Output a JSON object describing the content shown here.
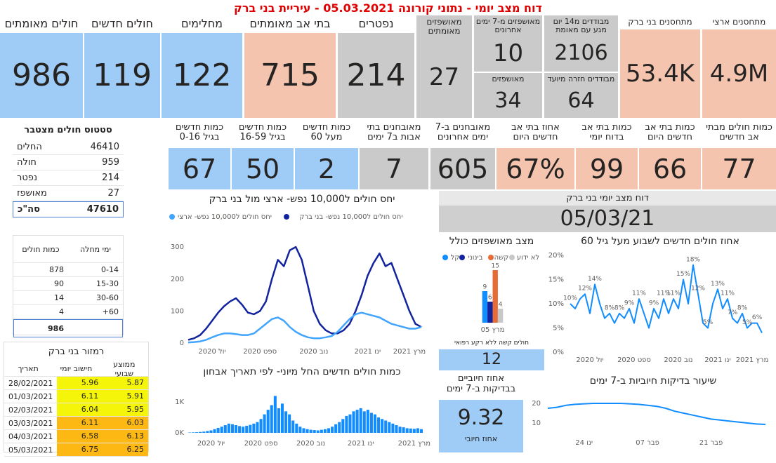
{
  "header": {
    "title": "דוח מצב יומי - נתוני קורונה 05.03.2021 - עיריית בני ברק"
  },
  "kpis_top": [
    {
      "label": "חולים מאומתים",
      "value": 986
    },
    {
      "label": "חולים חדשים",
      "value": 119
    },
    {
      "label": "מחלימים",
      "value": 122
    },
    {
      "label": "בתי אב מאומתים",
      "value": 715
    },
    {
      "label": "נפטרים",
      "value": 214
    },
    {
      "label": "מאושפזים מאומתים",
      "value": 27
    },
    {
      "label": "מאושפזים מ-7 ימים אחרונים",
      "value": 10
    },
    {
      "label": "מאושפזים",
      "value": 34
    },
    {
      "label": "מבודדים מ14 יום מגע עם מאומת",
      "value": 2106
    },
    {
      "label": "מבודדים חזרה מיועד",
      "value": 64
    },
    {
      "label": "מתחסנים בני ברק",
      "value": "53.4K"
    },
    {
      "label": "מתחסנים ארצי",
      "value": "4.9M"
    }
  ],
  "kpis_row2": [
    {
      "label": "כמות חדשים בגיל 0-16",
      "value": 67
    },
    {
      "label": "כמות חדשים בגיל 16-59",
      "value": 50
    },
    {
      "label": "כמות חדשים מעל 60",
      "value": 2
    },
    {
      "label": "מאובחנים בתי אבות ב7 ימים",
      "value": 7
    },
    {
      "label": "מאובחנים ב-7 ימים אחרונים",
      "value": 605
    },
    {
      "label": "אחוז בתי אב חדשים היום",
      "value": "67%"
    },
    {
      "label": "כמות בתי אב בדוח יומי",
      "value": 99
    },
    {
      "label": "כמות בתי אב חדשים היום",
      "value": 66
    },
    {
      "label": "כמות חולים מבתי אב חדשים",
      "value": 77
    }
  ],
  "status_table": {
    "title": "סטטוס חולים מצטבר",
    "rows": [
      [
        "החלים",
        46410
      ],
      [
        "חולה",
        959
      ],
      [
        "נפטר",
        214
      ],
      [
        "מאושפז",
        27
      ]
    ],
    "total": [
      "סה\"כ",
      47610
    ]
  },
  "age_table": {
    "headers": [
      "ימי מחלה",
      "כמות חולים"
    ],
    "rows": [
      [
        "0-14",
        878
      ],
      [
        "15-30",
        90
      ],
      [
        "30-60",
        14
      ],
      [
        "60+",
        4
      ]
    ],
    "total": 986
  },
  "traffic_table": {
    "title": "רמזור בני ברק",
    "headers": [
      "תאריך",
      "חישוב יומי",
      "ממוצע שבועי"
    ],
    "rows": [
      [
        "28/02/2021",
        5.96,
        5.87
      ],
      [
        "01/03/2021",
        6.11,
        5.91
      ],
      [
        "02/03/2021",
        6.04,
        5.95
      ],
      [
        "03/03/2021",
        6.11,
        6.03
      ],
      [
        "04/03/2021",
        6.58,
        6.13
      ],
      [
        "05/03/2021",
        6.75,
        6.25
      ]
    ],
    "row_colors": [
      "#f5f50a",
      "#f5f50a",
      "#f5f50a",
      "#fdb813",
      "#fdb813",
      "#fdb813"
    ]
  },
  "daily_report": {
    "title": "דוח מצב יומי בני ברק",
    "date": "05/03/21"
  },
  "severe_no_background": {
    "label": "חולים קשה ללא רקע רפואי",
    "value": 12
  },
  "positive_rate": {
    "title": "אחוז חיוביים בבדיקות ב-7 ימים",
    "value": 9.32,
    "label": "אחוז חיובי"
  },
  "chart_data": [
    {
      "type": "line",
      "title": "יחס חולים ל10,000 נפש- ארצי מול בני ברק",
      "categories": [
        null,
        null,
        null,
        null,
        "יול 2020",
        null,
        null,
        null,
        null,
        null,
        null,
        null,
        "ספט 2020",
        null,
        null,
        null,
        null,
        null,
        null,
        null,
        null,
        "נוב 2020",
        null,
        null,
        null,
        null,
        null,
        null,
        null,
        null,
        "ינו 2021",
        null,
        null,
        null,
        null,
        null,
        null,
        "מרץ 2021",
        null,
        null
      ],
      "series": [
        {
          "name": "יחס חולים ל10,000 נפש- בני ברק",
          "color": "#12239e",
          "values": [
            10,
            15,
            25,
            45,
            70,
            95,
            115,
            130,
            140,
            120,
            95,
            90,
            100,
            130,
            200,
            260,
            240,
            290,
            300,
            260,
            180,
            100,
            60,
            40,
            30,
            30,
            40,
            60,
            100,
            150,
            210,
            250,
            280,
            240,
            250,
            200,
            150,
            100,
            60,
            50
          ]
        },
        {
          "name": "יחס חולים ל10,000 נפש- ארצי",
          "color": "#41a4ff",
          "values": [
            2,
            3,
            5,
            10,
            18,
            25,
            30,
            30,
            28,
            25,
            25,
            30,
            45,
            60,
            75,
            80,
            70,
            50,
            35,
            25,
            18,
            15,
            15,
            18,
            22,
            35,
            55,
            75,
            90,
            95,
            90,
            85,
            80,
            70,
            60,
            55,
            50,
            45,
            45,
            50
          ]
        }
      ],
      "ylim": [
        0,
        320
      ],
      "yticks": [
        0,
        100,
        200,
        300
      ],
      "grid": false
    },
    {
      "type": "bar",
      "title": "כמות חולים חדשים החל מיוני- לפי תאריך אבחון",
      "categories": [
        null,
        null,
        null,
        null,
        null,
        null,
        "יול 2020",
        null,
        null,
        null,
        null,
        null,
        null,
        null,
        null,
        null,
        null,
        null,
        null,
        null,
        "ספט 2020",
        null,
        null,
        null,
        null,
        null,
        null,
        null,
        null,
        null,
        null,
        null,
        null,
        null,
        "נוב 2020",
        null,
        null,
        null,
        null,
        null,
        null,
        null,
        null,
        null,
        null,
        null,
        null,
        null,
        "ינו 2021",
        null,
        null,
        null,
        null,
        null,
        null,
        null,
        null,
        null,
        null,
        null,
        null,
        null,
        null,
        "מרץ 2021",
        null,
        null
      ],
      "values": [
        10,
        15,
        20,
        30,
        40,
        60,
        80,
        120,
        160,
        200,
        250,
        300,
        280,
        250,
        220,
        200,
        230,
        260,
        300,
        350,
        450,
        600,
        750,
        900,
        1200,
        800,
        950,
        700,
        600,
        400,
        300,
        200,
        150,
        120,
        100,
        90,
        80,
        100,
        120,
        150,
        200,
        280,
        350,
        450,
        550,
        600,
        700,
        750,
        800,
        700,
        750,
        650,
        600,
        500,
        450,
        400,
        350,
        300,
        250,
        200,
        180,
        150,
        140,
        130,
        150,
        120
      ],
      "color": "#118dff",
      "ylim": [
        0,
        1300
      ],
      "yticks": [
        {
          "value": 0,
          "label": "0K"
        },
        {
          "value": 1000,
          "label": "1K"
        }
      ],
      "grid": false
    },
    {
      "type": "bar",
      "title": "מצב מאושפזים כולל",
      "categories": [
        "מרץ 05"
      ],
      "ylim": [
        0,
        15
      ],
      "series": [
        {
          "name": "קל",
          "color": "#118dff",
          "values": [
            9
          ]
        },
        {
          "name": "בינוני",
          "color": "#12239e",
          "values": [
            6
          ]
        },
        {
          "name": "קשה",
          "color": "#e66c37",
          "values": [
            15
          ]
        },
        {
          "name": "לא ידוע",
          "color": "#c8c8c8",
          "values": [
            4
          ]
        }
      ]
    },
    {
      "type": "line",
      "title": "אחוז חולים חדשים לשבוע מעל גיל 60",
      "categories": [
        null,
        null,
        null,
        null,
        "יול 2020",
        null,
        null,
        null,
        null,
        null,
        null,
        null,
        null,
        "ספט 2020",
        null,
        null,
        null,
        null,
        null,
        null,
        null,
        null,
        "נוב 2020",
        null,
        null,
        null,
        null,
        null,
        null,
        null,
        "ינו 2021",
        null,
        null,
        null,
        null,
        null,
        null,
        "מרץ 2021",
        null,
        null
      ],
      "series": [
        {
          "color": "#118dff",
          "values": [
            10,
            9,
            11,
            12,
            8,
            14,
            10,
            7,
            8,
            6,
            8,
            7,
            9,
            6,
            11,
            8,
            5,
            9,
            7,
            11,
            8,
            11,
            9,
            15,
            10,
            18,
            12,
            6,
            5,
            10,
            13,
            9,
            11,
            7,
            6,
            8,
            5,
            6,
            6,
            4
          ],
          "value_labels": [
            "10%",
            null,
            null,
            "12%",
            null,
            "14%",
            null,
            null,
            "8%",
            null,
            "8%",
            null,
            "9%",
            null,
            "11%",
            null,
            null,
            "9%",
            null,
            "11%",
            null,
            "11%",
            null,
            "15%",
            null,
            "18%",
            "12%",
            null,
            "5%",
            null,
            "13%",
            null,
            "11%",
            "7%",
            null,
            "8%",
            "5%",
            null,
            "6%",
            null
          ]
        }
      ],
      "ylim": [
        0,
        20
      ],
      "yticks": [
        {
          "value": 0,
          "label": "0%"
        },
        {
          "value": 5,
          "label": "5%"
        },
        {
          "value": 10,
          "label": "10%"
        },
        {
          "value": 15,
          "label": "15%"
        },
        {
          "value": 20,
          "label": "20%"
        }
      ],
      "grid": false
    },
    {
      "type": "line",
      "title": "שיעור בדיקות חיוביות ב-7 ימים",
      "categories": [
        null,
        null,
        null,
        null,
        "ינו 24",
        null,
        null,
        null,
        null,
        null,
        null,
        "פבר 07",
        null,
        null,
        null,
        null,
        null,
        null,
        "פבר 21",
        null,
        null,
        null,
        null,
        null,
        null
      ],
      "series": [
        {
          "color": "#118dff",
          "values": [
            17.5,
            18,
            19,
            19.5,
            19.8,
            20,
            20,
            20,
            20,
            19.8,
            19.5,
            19,
            18.5,
            17.5,
            16,
            15,
            14,
            13,
            12,
            11.5,
            11,
            10.5,
            10,
            9.5,
            9.3
          ]
        }
      ],
      "ylim": [
        5,
        25
      ],
      "yticks": [
        10,
        20
      ],
      "grid": false
    }
  ]
}
